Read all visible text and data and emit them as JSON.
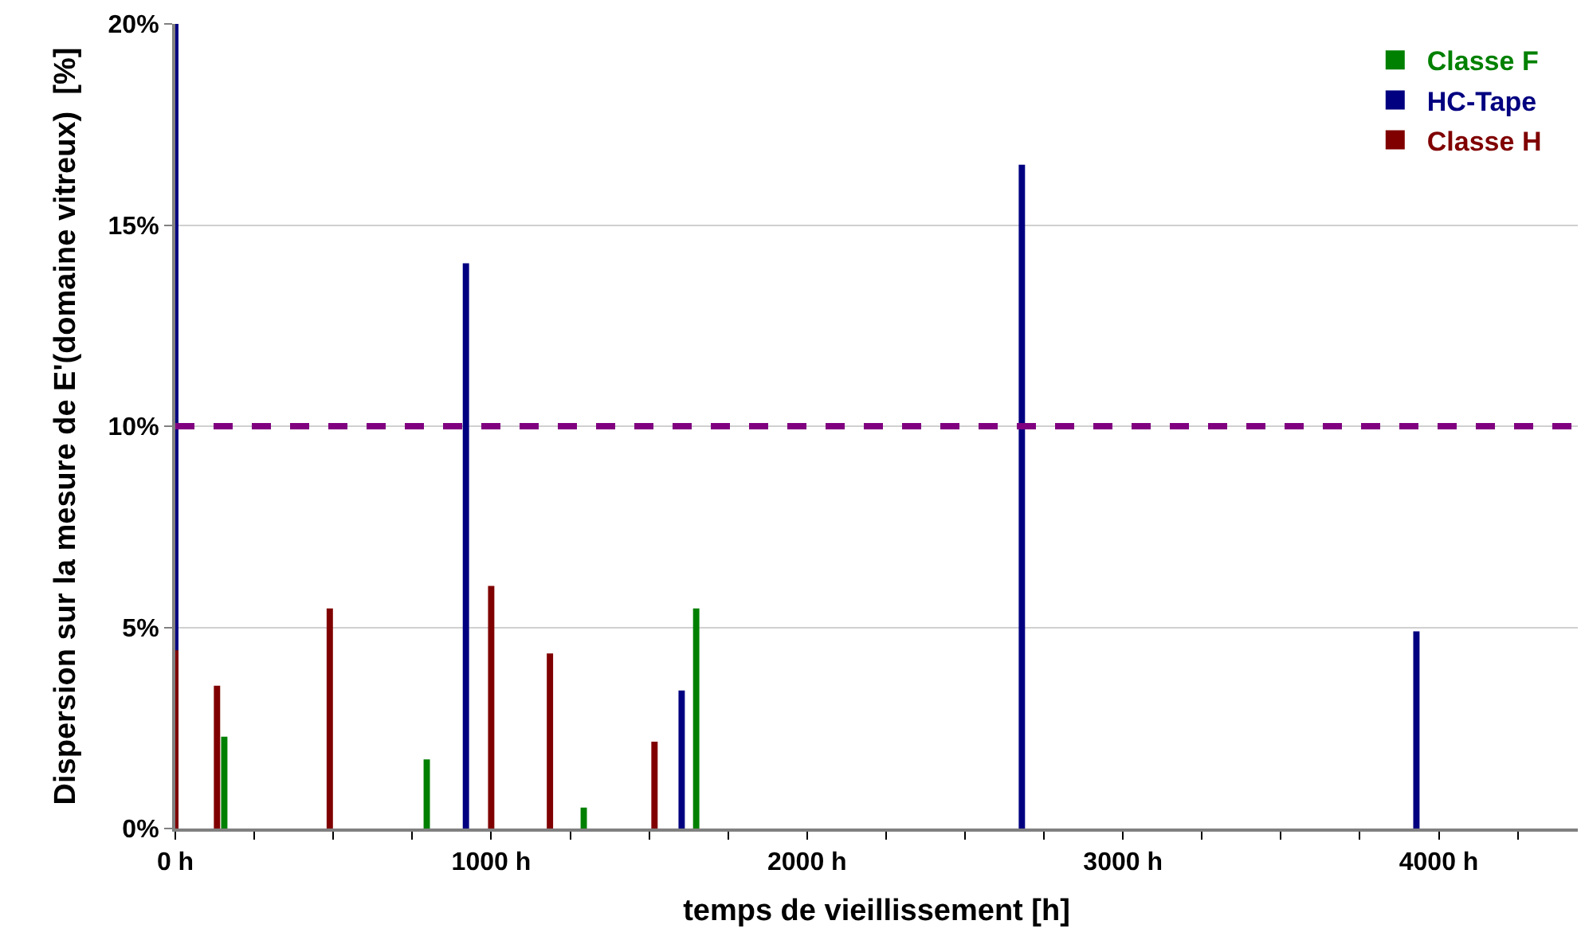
{
  "chart_data": {
    "type": "bar",
    "xlabel": "temps de vieillissement [h]",
    "ylabel": "Dispersion sur la mesure de E'(domaine vitreux)  [%]",
    "series": [
      {
        "name": "Classe F",
        "color": "#008000",
        "x": [
          155,
          796,
          1293,
          1649
        ],
        "values": [
          2.28,
          1.72,
          0.52,
          5.47
        ]
      },
      {
        "name": "HC-Tape",
        "color": "#000080",
        "x": [
          0,
          920,
          1603,
          2680,
          3929
        ],
        "values": [
          20,
          14.05,
          3.43,
          16.5,
          4.9
        ]
      },
      {
        "name": "Classe H",
        "color": "#800000",
        "x": [
          0,
          132,
          489,
          1000,
          1186,
          1517
        ],
        "values": [
          4.43,
          3.55,
          5.47,
          6.03,
          4.35,
          2.16
        ]
      }
    ],
    "xlim": [
      0,
      4440
    ],
    "xticks": [
      {
        "value": 0,
        "label": "0 h"
      },
      {
        "value": 250,
        "label": null
      },
      {
        "value": 500,
        "label": null
      },
      {
        "value": 750,
        "label": null
      },
      {
        "value": 1000,
        "label": "1000 h"
      },
      {
        "value": 1250,
        "label": null
      },
      {
        "value": 1500,
        "label": null
      },
      {
        "value": 1750,
        "label": null
      },
      {
        "value": 2000,
        "label": "2000 h"
      },
      {
        "value": 2250,
        "label": null
      },
      {
        "value": 2500,
        "label": null
      },
      {
        "value": 2750,
        "label": null
      },
      {
        "value": 3000,
        "label": "3000 h"
      },
      {
        "value": 3250,
        "label": null
      },
      {
        "value": 3500,
        "label": null
      },
      {
        "value": 3750,
        "label": null
      },
      {
        "value": 4000,
        "label": "4000 h"
      },
      {
        "value": 4250,
        "label": null
      }
    ],
    "ylim": [
      0,
      20
    ],
    "yticks": [
      {
        "value": 0,
        "label": "0%"
      },
      {
        "value": 5,
        "label": "5%"
      },
      {
        "value": 10,
        "label": "10%"
      },
      {
        "value": 15,
        "label": "15%"
      },
      {
        "value": 20,
        "label": "20%"
      }
    ],
    "ref_lines": [
      {
        "axis": "y",
        "value": 10,
        "label": null,
        "color": "#800080",
        "line_style": "dashed"
      }
    ],
    "grid": "y",
    "legend": "top right"
  }
}
